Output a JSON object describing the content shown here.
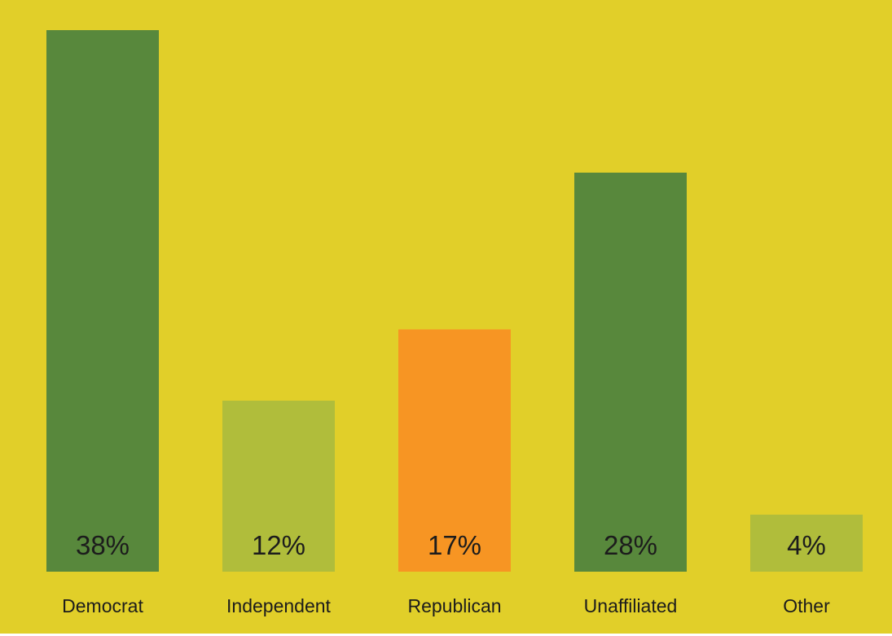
{
  "chart_data": {
    "type": "bar",
    "categories": [
      "Democrat",
      "Independent",
      "Republican",
      "Unaffiliated",
      "Other"
    ],
    "values": [
      38,
      12,
      17,
      28,
      4
    ],
    "value_labels": [
      "38%",
      "12%",
      "17%",
      "28%",
      "4%"
    ],
    "bar_colors": [
      "#58883c",
      "#b0bd3b",
      "#f79523",
      "#58883c",
      "#b0bd3b"
    ],
    "background_color": "#e1cf29",
    "title": "",
    "xlabel": "",
    "ylabel": "",
    "ylim": [
      0,
      38
    ],
    "grid": false,
    "legend": "none"
  }
}
